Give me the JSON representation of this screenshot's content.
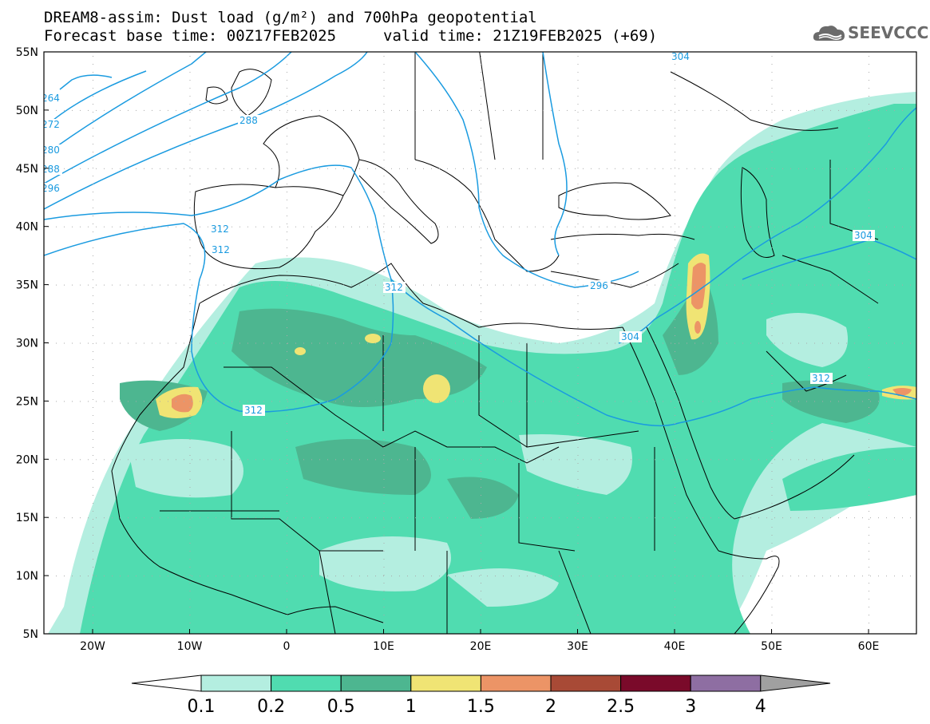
{
  "title_line1": "DREAM8-assim: Dust load (g/m²) and 700hPa geopotential",
  "title_base": "Forecast base time: 00Z17FEB2025",
  "title_valid": "valid time: 21Z19FEB2025 (+69)",
  "logo_text": "SEEVCCC",
  "lat_labels": [
    "55N",
    "50N",
    "45N",
    "40N",
    "35N",
    "30N",
    "25N",
    "20N",
    "15N",
    "10N",
    "5N"
  ],
  "lon_labels": [
    "20W",
    "10W",
    "0",
    "10E",
    "20E",
    "30E",
    "40E",
    "50E",
    "60E"
  ],
  "contour_labels": [
    "264",
    "272",
    "280",
    "288",
    "296",
    "304",
    "312",
    "312",
    "312",
    "312",
    "296",
    "304",
    "304",
    "312",
    "288"
  ],
  "colorbar": {
    "labels": [
      "0.1",
      "0.2",
      "0.5",
      "1",
      "1.5",
      "2",
      "2.5",
      "3",
      "4"
    ],
    "colors": [
      "#ffffff",
      "#b4eee0",
      "#50dcb0",
      "#4db690",
      "#f0e474",
      "#ec9466",
      "#a84a36",
      "#7a0a2a",
      "#8e6ea2",
      "#a0a0a0"
    ]
  },
  "colors": {
    "contour": "#1a9be0",
    "dust_low": "#b4eee0",
    "dust_mid": "#50dcb0",
    "dust_high": "#4db690",
    "dust_yellow": "#f0e474",
    "dust_orange": "#ec9466"
  }
}
